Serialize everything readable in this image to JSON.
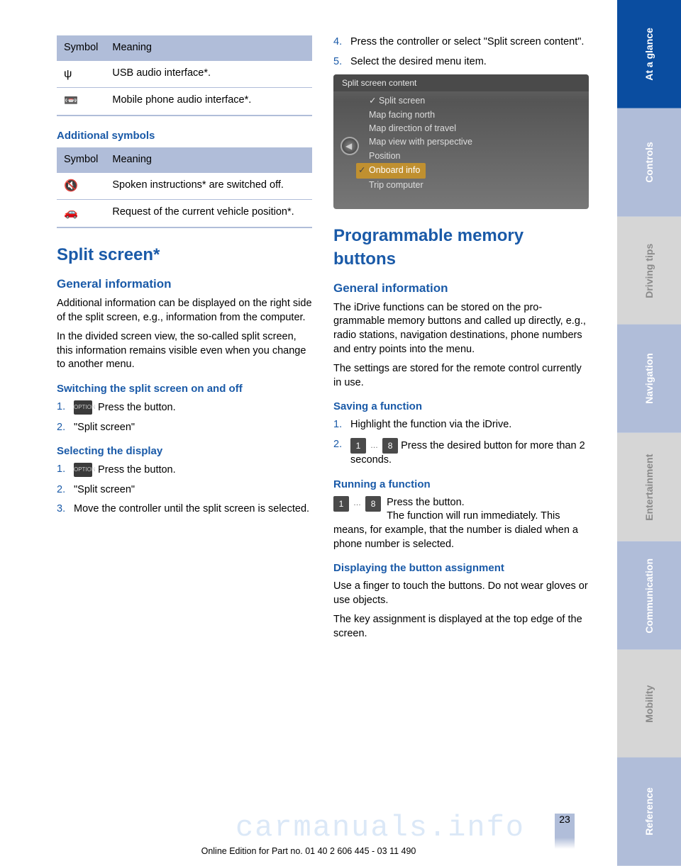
{
  "colors": {
    "accent_blue": "#1a5aa8",
    "table_header_bg": "#b0bdd9",
    "tab_active_bg": "#0a4da0",
    "tab_inactive_bg": "#b0bdd9",
    "tab_muted_bg": "#d6d6d6",
    "tab_muted_text": "#7a7a7a",
    "screenshot_highlight": "#c09030"
  },
  "table1": {
    "headers": [
      "Symbol",
      "Meaning"
    ],
    "rows": [
      {
        "icon": "ψ",
        "icon_name": "usb-icon",
        "meaning": "USB audio interface*."
      },
      {
        "icon": "📼",
        "icon_name": "cassette-icon",
        "meaning": "Mobile phone audio interface*."
      }
    ]
  },
  "section_additional_symbols": {
    "title": "Additional symbols"
  },
  "table2": {
    "headers": [
      "Symbol",
      "Meaning"
    ],
    "rows": [
      {
        "icon": "🔇",
        "icon_name": "speaker-off-icon",
        "meaning": "Spoken instructions* are switched off."
      },
      {
        "icon": "🚗",
        "icon_name": "car-position-icon",
        "meaning": "Request of the current vehicle posi­tion*."
      }
    ]
  },
  "split_screen": {
    "title": "Split screen*",
    "general": {
      "title": "General information",
      "p1": "Additional information can be displayed on the right side of the split screen, e.g., information from the computer.",
      "p2": "In the divided screen view, the so-called split screen, this information remains visible even when you change to another menu."
    },
    "switching": {
      "title": "Switching the split screen on and off",
      "step1_btn": "OPTION",
      "step1_text": " Press the button.",
      "step2_text": "\"Split screen\""
    },
    "selecting": {
      "title": "Selecting the display",
      "step1_btn": "OPTION",
      "step1_text": " Press the button.",
      "step2_text": "\"Split screen\"",
      "step3_text": "Move the controller until the split screen is selected.",
      "step4_text": "Press the controller or select \"Split screen content\".",
      "step5_text": "Select the desired menu item."
    }
  },
  "screenshot": {
    "title": "Split screen content",
    "items": [
      "Split screen",
      "Map facing north",
      "Map direction of travel",
      "Map view with perspective",
      "Position",
      "Onboard info",
      "Trip computer"
    ],
    "selected_index": 5,
    "checked_indices": [
      0,
      5
    ]
  },
  "prog_buttons": {
    "title": "Programmable memory buttons",
    "general": {
      "title": "General information",
      "p1": "The iDrive functions can be stored on the pro­grammable memory buttons and called up di­rectly, e.g., radio stations, navigation destina­tions, phone numbers and entry points into the menu.",
      "p2": "The settings are stored for the remote control currently in use."
    },
    "saving": {
      "title": "Saving a function",
      "step1": "Highlight the function via the iDrive.",
      "step2_key1": "1",
      "step2_dots": "…",
      "step2_key2": "8",
      "step2_text": " Press the desired button for more than 2 seconds."
    },
    "running": {
      "title": "Running a function",
      "key1": "1",
      "dots": "…",
      "key2": "8",
      "line1": "Press the button.",
      "line2": "The function will run immediately. This means, for example, that the number is dialed when a phone number is selected."
    },
    "displaying": {
      "title": "Displaying the button assignment",
      "p1": "Use a finger to touch the buttons. Do not wear gloves or use objects.",
      "p2": "The key assignment is displayed at the top edge of the screen."
    }
  },
  "tabs": [
    {
      "label": "At a glance",
      "bg": "#0a4da0",
      "fg": "#ffffff"
    },
    {
      "label": "Controls",
      "bg": "#b0bdd9",
      "fg": "#ffffff"
    },
    {
      "label": "Driving tips",
      "bg": "#d6d6d6",
      "fg": "#8a8a8a"
    },
    {
      "label": "Navigation",
      "bg": "#b0bdd9",
      "fg": "#ffffff"
    },
    {
      "label": "Entertainment",
      "bg": "#d6d6d6",
      "fg": "#8a8a8a"
    },
    {
      "label": "Communication",
      "bg": "#b0bdd9",
      "fg": "#ffffff"
    },
    {
      "label": "Mobility",
      "bg": "#d6d6d6",
      "fg": "#8a8a8a"
    },
    {
      "label": "Reference",
      "bg": "#b0bdd9",
      "fg": "#ffffff"
    }
  ],
  "page_number": "23",
  "footer": "Online Edition for Part no. 01 40 2 606 445 - 03 11 490",
  "watermark": "carmanuals.info"
}
